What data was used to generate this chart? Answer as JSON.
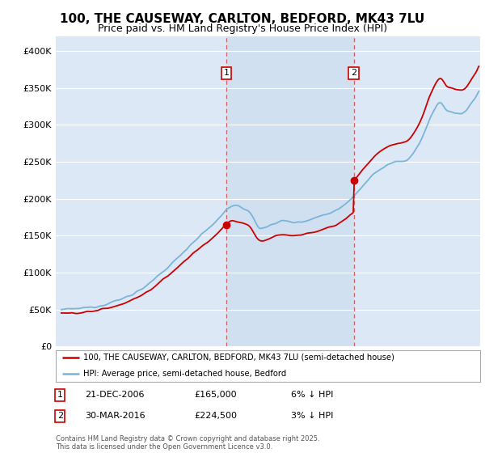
{
  "title": "100, THE CAUSEWAY, CARLTON, BEDFORD, MK43 7LU",
  "subtitle": "Price paid vs. HM Land Registry's House Price Index (HPI)",
  "ylim": [
    0,
    420000
  ],
  "yticks": [
    0,
    50000,
    100000,
    150000,
    200000,
    250000,
    300000,
    350000,
    400000
  ],
  "ytick_labels": [
    "£0",
    "£50K",
    "£100K",
    "£150K",
    "£200K",
    "£250K",
    "£300K",
    "£350K",
    "£400K"
  ],
  "xlim_start": 1994.6,
  "xlim_end": 2025.4,
  "background_color": "#ffffff",
  "plot_bg_color": "#dce8f5",
  "plot_bg_color_highlighted": "#c8dbee",
  "grid_color": "#ffffff",
  "hpi_line_color": "#7ab4d8",
  "price_line_color": "#cc0000",
  "purchase1_date": 2006.97,
  "purchase1_price": 165000,
  "purchase2_date": 2016.22,
  "purchase2_price": 224500,
  "vline_color": "#d46060",
  "marker_color": "#cc0000",
  "legend_house_label": "100, THE CAUSEWAY, CARLTON, BEDFORD, MK43 7LU (semi-detached house)",
  "legend_hpi_label": "HPI: Average price, semi-detached house, Bedford",
  "footer": "Contains HM Land Registry data © Crown copyright and database right 2025.\nThis data is licensed under the Open Government Licence v3.0.",
  "title_fontsize": 11,
  "subtitle_fontsize": 9
}
